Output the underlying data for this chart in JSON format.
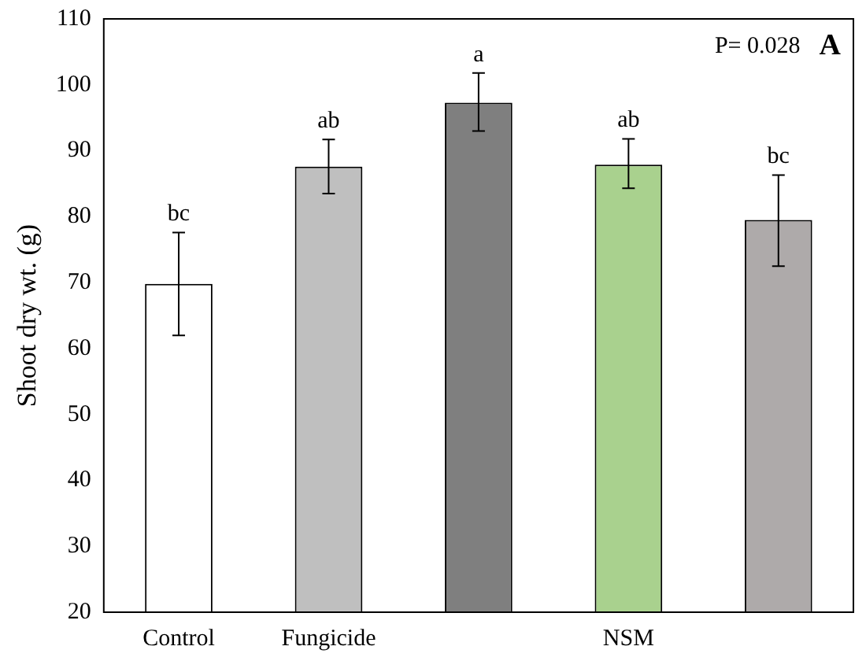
{
  "chart_data": {
    "type": "bar",
    "ylabel": "Shoot dry wt. (g)",
    "categories": [
      "Control",
      "Fungicide",
      null,
      "NSM",
      null
    ],
    "values": [
      69.8,
      87.6,
      97.3,
      87.9,
      79.5
    ],
    "colors": [
      "#ffffff",
      "#bfbfbf",
      "#7f7f7f",
      "#a9d18e",
      "#aeaaaa"
    ],
    "errors": [
      [
        62,
        77.6
      ],
      [
        83.5,
        91.7
      ],
      [
        93,
        101.8
      ],
      [
        84.3,
        91.8
      ],
      [
        72.5,
        86.3
      ]
    ],
    "value_labels": [
      "bc",
      "ab",
      "a",
      "ab",
      "bc"
    ],
    "annotations": [
      "P= 0.028",
      "A"
    ],
    "ylim": [
      20,
      110
    ],
    "yticks": [
      20,
      30,
      40,
      50,
      60,
      70,
      80,
      90,
      100,
      110
    ],
    "grid": false,
    "legend": false
  }
}
